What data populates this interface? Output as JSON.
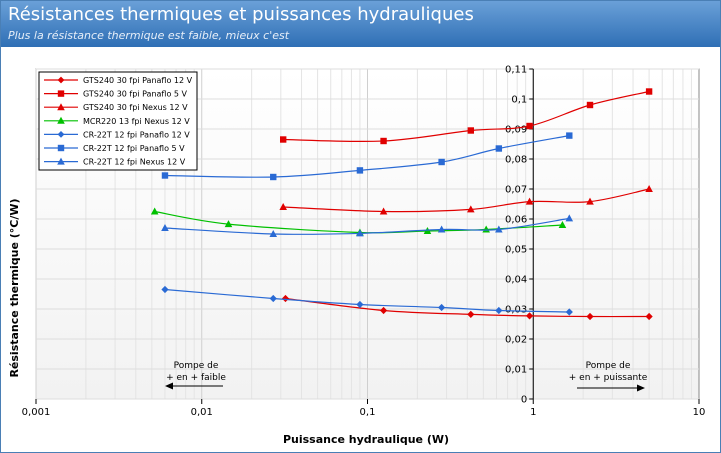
{
  "header": {
    "title": "Résistances thermiques et puissances hydrauliques",
    "subtitle": "Plus la résistance thermique est faible, mieux c'est"
  },
  "annotations": {
    "left": {
      "line1": "Pompe de",
      "line2": "+ en + faible"
    },
    "right": {
      "line1": "Pompe de",
      "line2": "+ en + puissante"
    }
  },
  "chart_data": {
    "type": "line",
    "xscale": "log",
    "xlim": [
      0.001,
      10
    ],
    "ylim": [
      0,
      0.11
    ],
    "xlabel": "Puissance hydraulique (W)",
    "ylabel": "Résistance thermique (°C/W)",
    "xticks": [
      "0,001",
      "0,01",
      "0,1",
      "1",
      "10"
    ],
    "yticks": [
      "0",
      "0,01",
      "0,02",
      "0,03",
      "0,04",
      "0,05",
      "0,06",
      "0,07",
      "0,08",
      "0,09",
      "0,1",
      "0,11"
    ],
    "grid": true,
    "legend_position": "top-left",
    "series": [
      {
        "name": "GTS240 30 fpi Panaflo 12 V",
        "color": "#e00000",
        "marker": "diamond",
        "x": [
          0.032,
          0.125,
          0.42,
          0.95,
          2.2,
          5.0
        ],
        "y": [
          0.0335,
          0.0295,
          0.0282,
          0.0277,
          0.0275,
          0.0275
        ]
      },
      {
        "name": "GTS240 30 fpi Panaflo 5 V",
        "color": "#e00000",
        "marker": "square",
        "x": [
          0.031,
          0.125,
          0.42,
          0.95,
          2.2,
          5.0
        ],
        "y": [
          0.0865,
          0.086,
          0.0895,
          0.091,
          0.098,
          0.1025
        ]
      },
      {
        "name": "GTS240 30 fpi Nexus 12 V",
        "color": "#e00000",
        "marker": "triangle",
        "x": [
          0.031,
          0.125,
          0.42,
          0.95,
          2.2,
          5.0
        ],
        "y": [
          0.064,
          0.0625,
          0.0632,
          0.0658,
          0.0658,
          0.07
        ]
      },
      {
        "name": "MCR220 13 fpi Nexus 12 V",
        "color": "#00c000",
        "marker": "triangle",
        "x": [
          0.0052,
          0.0145,
          0.09,
          0.23,
          0.52,
          1.5
        ],
        "y": [
          0.0625,
          0.0583,
          0.0555,
          0.056,
          0.0565,
          0.058
        ]
      },
      {
        "name": "CR-22T 12 fpi Panaflo 12 V",
        "color": "#2a6ad4",
        "marker": "diamond",
        "x": [
          0.006,
          0.027,
          0.09,
          0.28,
          0.62,
          1.65
        ],
        "y": [
          0.0365,
          0.0335,
          0.0315,
          0.0305,
          0.0295,
          0.029
        ]
      },
      {
        "name": "CR-22T 12 fpi Panaflo 5 V",
        "color": "#2a6ad4",
        "marker": "square",
        "x": [
          0.006,
          0.027,
          0.09,
          0.28,
          0.62,
          1.65
        ],
        "y": [
          0.0745,
          0.074,
          0.0762,
          0.079,
          0.0835,
          0.0878
        ]
      },
      {
        "name": "CR-22T 12 fpi Nexus 12 V",
        "color": "#2a6ad4",
        "marker": "triangle",
        "x": [
          0.006,
          0.027,
          0.09,
          0.28,
          0.62,
          1.65
        ],
        "y": [
          0.057,
          0.055,
          0.0552,
          0.0565,
          0.0565,
          0.0602
        ]
      }
    ]
  }
}
